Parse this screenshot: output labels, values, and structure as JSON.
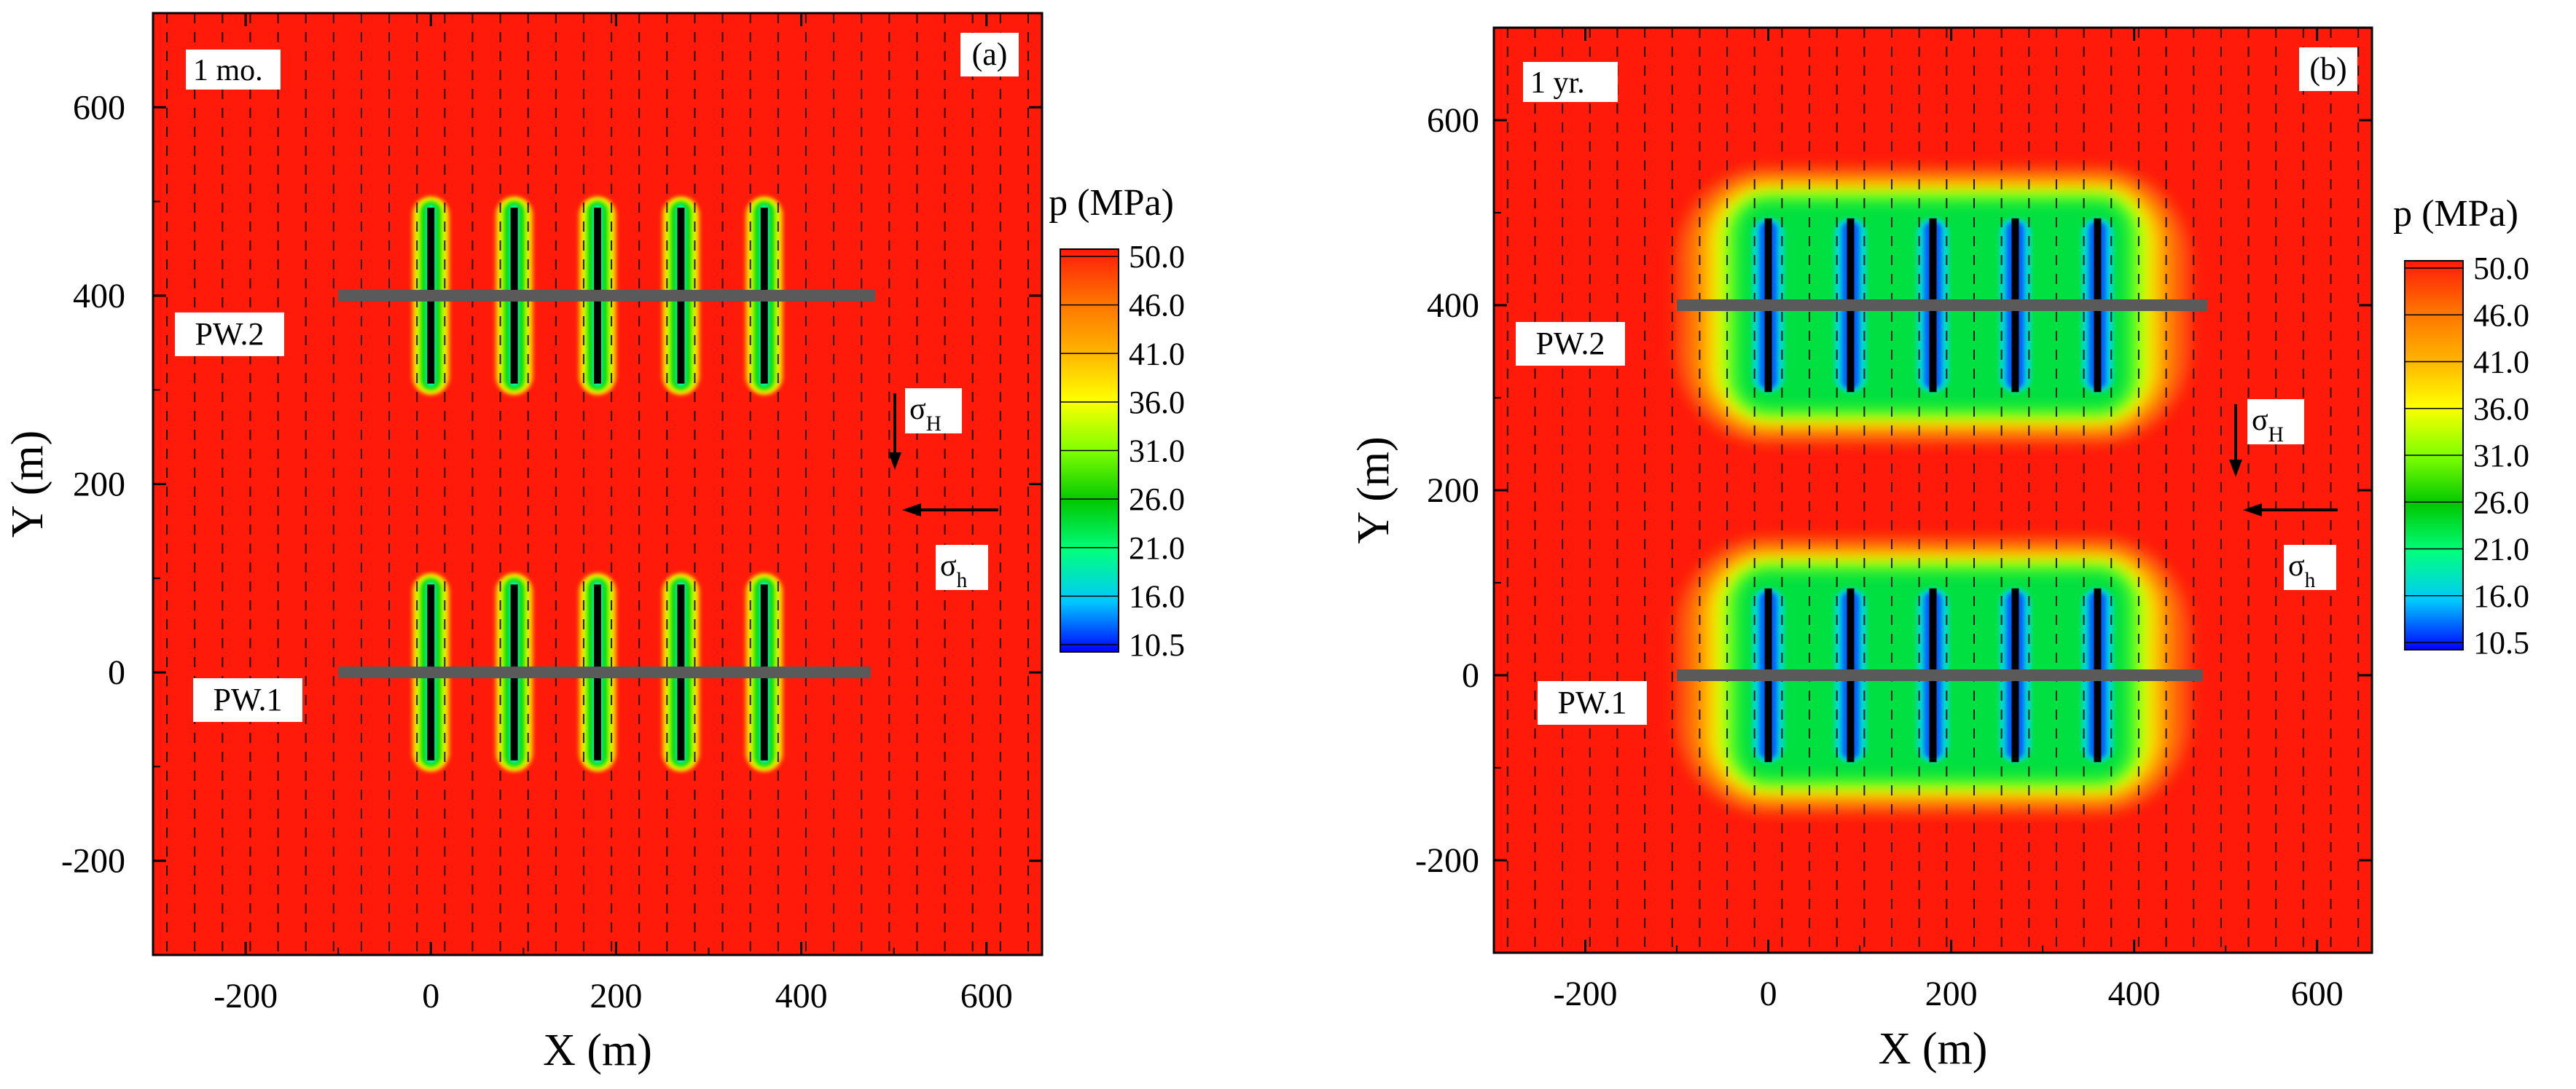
{
  "chart_data": [
    {
      "type": "heatmap",
      "panel_label": "(a)",
      "time_label": "1 mo.",
      "xlabel": "X (m)",
      "ylabel": "Y (m)",
      "xlim": [
        -300,
        660
      ],
      "ylim": [
        -300,
        700
      ],
      "x_ticks": [
        -200,
        0,
        200,
        400,
        600
      ],
      "y_ticks": [
        -200,
        0,
        200,
        400,
        600
      ],
      "colorbar_title": "p (MPa)",
      "colorbar_ticks": [
        "50.0",
        "46.0",
        "41.0",
        "36.0",
        "31.0",
        "26.0",
        "21.0",
        "16.0",
        "10.5"
      ],
      "colorbar_range": [
        10.5,
        50.0
      ],
      "background_pressure_mpa": 50.0,
      "fractures_x": [
        0,
        90,
        180,
        270,
        360
      ],
      "fracture_half_length": 95,
      "depletion_halo_m": 15,
      "wells": [
        {
          "label": "PW.2",
          "y": 400,
          "x_start": -100,
          "x_end": 480
        },
        {
          "label": "PW.1",
          "y": 0,
          "x_start": -100,
          "x_end": 475
        }
      ],
      "stress_labels": {
        "max": "σH",
        "min": "σh"
      }
    },
    {
      "type": "heatmap",
      "panel_label": "(b)",
      "time_label": "1 yr.",
      "xlabel": "X (m)",
      "ylabel": "Y (m)",
      "xlim": [
        -300,
        660
      ],
      "ylim": [
        -300,
        700
      ],
      "x_ticks": [
        -200,
        0,
        200,
        400,
        600
      ],
      "y_ticks": [
        -200,
        0,
        200,
        400,
        600
      ],
      "colorbar_title": "p (MPa)",
      "colorbar_ticks": [
        "50.0",
        "46.0",
        "41.0",
        "36.0",
        "31.0",
        "26.0",
        "21.0",
        "16.0",
        "10.5"
      ],
      "colorbar_range": [
        10.5,
        50.0
      ],
      "background_pressure_mpa": 50.0,
      "fractures_x": [
        0,
        90,
        180,
        270,
        360
      ],
      "fracture_half_length": 95,
      "depletion_halo_m": 75,
      "wells": [
        {
          "label": "PW.2",
          "y": 400,
          "x_start": -100,
          "x_end": 480
        },
        {
          "label": "PW.1",
          "y": 0,
          "x_start": -100,
          "x_end": 475
        }
      ],
      "stress_labels": {
        "max": "σH",
        "min": "σh"
      }
    }
  ],
  "colors": {
    "background": "#ff1a0a",
    "well": "#5a5a5a",
    "fracture": "#000000",
    "colormap": [
      "#0000ff",
      "#00c8ff",
      "#00ff80",
      "#00c800",
      "#80ff00",
      "#ffff00",
      "#ffb000",
      "#ff7000",
      "#ff1a0a"
    ]
  }
}
